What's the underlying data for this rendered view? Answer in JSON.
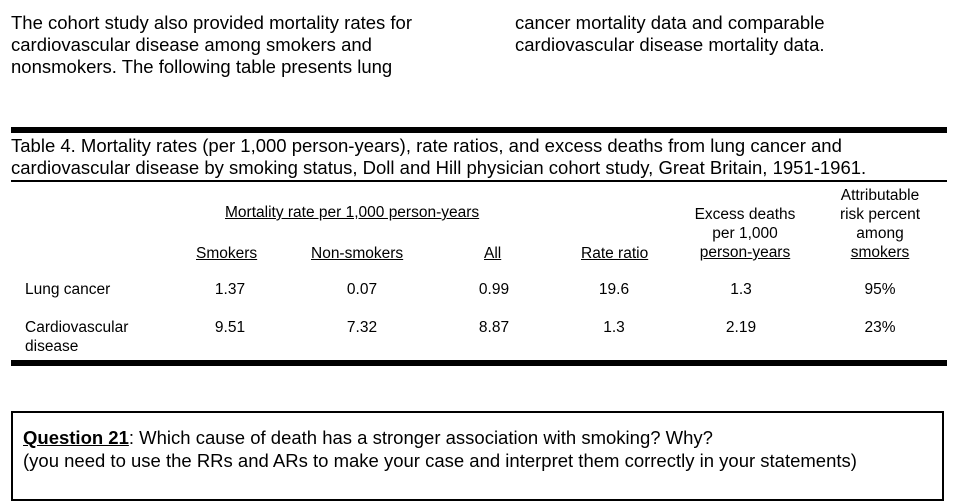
{
  "intro": {
    "left_lines": [
      "The cohort study also provided mortality rates for",
      "cardiovascular disease among smokers and",
      "nonsmokers.  The following table presents lung"
    ],
    "right_lines": [
      "cancer mortality data and comparable",
      "cardiovascular disease mortality data."
    ]
  },
  "table": {
    "caption_lines": [
      "Table 4.  Mortality rates (per 1,000 person-years), rate ratios, and excess deaths from lung cancer and",
      "cardiovascular disease by smoking status, Doll and Hill physician cohort study, Great Britain, 1951-1961."
    ],
    "group_header": "Mortality rate per 1,000 person-years",
    "headers": {
      "smokers": "Smokers",
      "nonsmokers": "Non-smokers",
      "all": "All",
      "rate_ratio": "Rate ratio",
      "excess_line1": "Excess deaths",
      "excess_line2": "per 1,000",
      "excess_line3": "person-years",
      "ar_line1": "Attributable",
      "ar_line2": "risk percent",
      "ar_line3": "among",
      "ar_line4": "smokers"
    },
    "rows": [
      {
        "cause_line1": "Lung cancer",
        "cause_line2": "",
        "smokers": "1.37",
        "nonsmokers": "0.07",
        "all": "0.99",
        "rate_ratio": "19.6",
        "excess": "1.3",
        "ar": "95%"
      },
      {
        "cause_line1": "Cardiovascular",
        "cause_line2": "disease",
        "smokers": "9.51",
        "nonsmokers": "7.32",
        "all": "8.87",
        "rate_ratio": "1.3",
        "excess": "2.19",
        "ar": "23%"
      }
    ]
  },
  "question": {
    "label": "Question 21",
    "text": ":  Which cause of death has a stronger association with smoking?  Why?",
    "line2": "(you need to use the RRs and ARs to make your case and interpret them correctly in your statements)"
  }
}
